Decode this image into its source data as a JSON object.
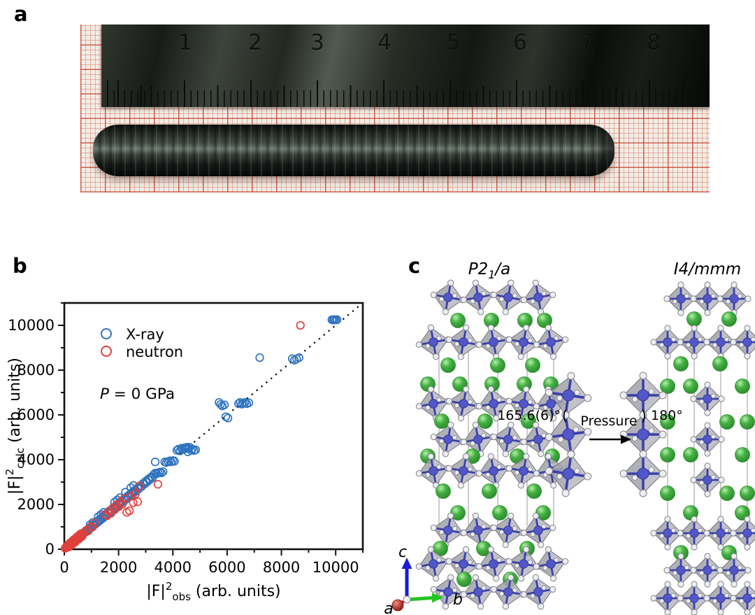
{
  "panels": {
    "a": {
      "label": "a",
      "ruler_numbers": [
        "1",
        "2",
        "3",
        "4",
        "5",
        "6",
        "7",
        "8"
      ]
    },
    "b": {
      "label": "b"
    },
    "c": {
      "label": "c",
      "left_space_group": {
        "base": "P2",
        "sub": "1",
        "rest": "/a"
      },
      "right_space_group": "I4/mmm",
      "angle_ambient": "165.6(6)°",
      "angle_pressure": "180°",
      "arrow_label": "Pressure",
      "axis_labels": {
        "a": "a",
        "b": "b",
        "c": "c"
      },
      "colors": {
        "lanthanum": "#44b042",
        "nickel": "#5157c8",
        "oxygen": "#ededf2",
        "octahedron": "#b4b4bc",
        "axis_a": "#c42222",
        "axis_b": "#22c522",
        "axis_c": "#1b1bd6"
      }
    }
  },
  "chart_data": {
    "type": "scatter",
    "title": "",
    "xlabel_parts": {
      "base": "|F|",
      "sup": "2",
      "sub": "obs",
      "rest": " (arb. units)"
    },
    "ylabel_parts": {
      "base": "|F|",
      "sup": "2",
      "sub": "calc",
      "rest": " (arb. units)"
    },
    "xlim": [
      0,
      11000
    ],
    "ylim": [
      0,
      11000
    ],
    "xticks": [
      0,
      2000,
      4000,
      6000,
      8000,
      10000
    ],
    "yticks": [
      0,
      2000,
      4000,
      6000,
      8000,
      10000
    ],
    "minor_tick_step": 1000,
    "grid": false,
    "legend_position": "upper-left-inside",
    "annotation": {
      "italic": "P",
      "rest": " = 0 GPa"
    },
    "reference_line": {
      "type": "identity y=x",
      "style": "dotted",
      "color": "#111111"
    },
    "series": [
      {
        "name": "X-ray",
        "color": "#2f73c0",
        "marker": "open-circle",
        "points": [
          [
            150,
            160
          ],
          [
            200,
            190
          ],
          [
            250,
            260
          ],
          [
            300,
            290
          ],
          [
            330,
            350
          ],
          [
            360,
            340
          ],
          [
            400,
            410
          ],
          [
            430,
            420
          ],
          [
            460,
            480
          ],
          [
            500,
            490
          ],
          [
            530,
            550
          ],
          [
            560,
            540
          ],
          [
            600,
            615
          ],
          [
            630,
            600
          ],
          [
            660,
            680
          ],
          [
            700,
            690
          ],
          [
            730,
            750
          ],
          [
            760,
            740
          ],
          [
            800,
            820
          ],
          [
            830,
            800
          ],
          [
            860,
            880
          ],
          [
            900,
            890
          ],
          [
            930,
            950
          ],
          [
            960,
            930
          ],
          [
            1000,
            1020
          ],
          [
            1030,
            1000
          ],
          [
            1060,
            1090
          ],
          [
            1100,
            1080
          ],
          [
            1130,
            1160
          ],
          [
            1160,
            1130
          ],
          [
            1200,
            1230
          ],
          [
            1230,
            1200
          ],
          [
            1260,
            1290
          ],
          [
            1300,
            1270
          ],
          [
            1330,
            1360
          ],
          [
            1360,
            1330
          ],
          [
            1400,
            1430
          ],
          [
            1430,
            1390
          ],
          [
            1460,
            1500
          ],
          [
            1500,
            1470
          ],
          [
            1530,
            1560
          ],
          [
            1560,
            1520
          ],
          [
            1600,
            1640
          ],
          [
            1630,
            1590
          ],
          [
            1660,
            1700
          ],
          [
            1700,
            1660
          ],
          [
            1730,
            1770
          ],
          [
            1760,
            1720
          ],
          [
            1800,
            1840
          ],
          [
            1830,
            1790
          ],
          [
            1860,
            1900
          ],
          [
            1900,
            1860
          ],
          [
            1930,
            1970
          ],
          [
            1960,
            1920
          ],
          [
            2000,
            2040
          ],
          [
            2030,
            1990
          ],
          [
            2060,
            2100
          ],
          [
            2100,
            2060
          ],
          [
            2130,
            2170
          ],
          [
            2160,
            2120
          ],
          [
            2200,
            2240
          ],
          [
            2230,
            2190
          ],
          [
            2260,
            2300
          ],
          [
            2300,
            2260
          ],
          [
            2330,
            2370
          ],
          [
            2360,
            2320
          ],
          [
            2400,
            2440
          ],
          [
            2430,
            2390
          ],
          [
            2460,
            2500
          ],
          [
            2500,
            2460
          ],
          [
            2530,
            2570
          ],
          [
            2560,
            2520
          ],
          [
            2600,
            2640
          ],
          [
            2650,
            2600
          ],
          [
            2700,
            2740
          ],
          [
            2750,
            2700
          ],
          [
            2800,
            2840
          ],
          [
            2850,
            2800
          ],
          [
            2900,
            2940
          ],
          [
            2950,
            2900
          ],
          [
            3000,
            3040
          ],
          [
            3050,
            3000
          ],
          [
            3100,
            3140
          ],
          [
            3150,
            3100
          ],
          [
            3200,
            3230
          ],
          [
            3250,
            3200
          ],
          [
            3300,
            3340
          ],
          [
            2450,
            2750
          ],
          [
            2550,
            2850
          ],
          [
            2250,
            2550
          ],
          [
            1850,
            2100
          ],
          [
            1950,
            2200
          ],
          [
            2050,
            2300
          ],
          [
            1250,
            1450
          ],
          [
            1350,
            1550
          ],
          [
            1450,
            1650
          ],
          [
            950,
            1100
          ],
          [
            1050,
            1200
          ],
          [
            3350,
            3400
          ],
          [
            3400,
            3370
          ],
          [
            3460,
            3420
          ],
          [
            3520,
            3450
          ],
          [
            3580,
            3410
          ],
          [
            3640,
            3470
          ],
          [
            3350,
            3900
          ],
          [
            3700,
            3900
          ],
          [
            3760,
            3870
          ],
          [
            3820,
            3920
          ],
          [
            3880,
            3950
          ],
          [
            3940,
            3900
          ],
          [
            4000,
            3960
          ],
          [
            4060,
            3930
          ],
          [
            4150,
            4420
          ],
          [
            4200,
            4470
          ],
          [
            4260,
            4390
          ],
          [
            4310,
            4510
          ],
          [
            4360,
            4460
          ],
          [
            4420,
            4530
          ],
          [
            4470,
            4490
          ],
          [
            4520,
            4560
          ],
          [
            4570,
            4500
          ],
          [
            4620,
            4560
          ],
          [
            4670,
            4420
          ],
          [
            4720,
            4480
          ],
          [
            4780,
            4410
          ],
          [
            4840,
            4440
          ],
          [
            4550,
            4350
          ],
          [
            5700,
            6560
          ],
          [
            5760,
            6470
          ],
          [
            5820,
            6400
          ],
          [
            5900,
            6450
          ],
          [
            5950,
            5920
          ],
          [
            6030,
            5860
          ],
          [
            6420,
            6500
          ],
          [
            6480,
            6560
          ],
          [
            6540,
            6480
          ],
          [
            6600,
            6530
          ],
          [
            6660,
            6560
          ],
          [
            6720,
            6500
          ],
          [
            6800,
            6540
          ],
          [
            7200,
            8560
          ],
          [
            8400,
            8510
          ],
          [
            8480,
            8450
          ],
          [
            8560,
            8500
          ],
          [
            8650,
            8560
          ],
          [
            9860,
            10250
          ],
          [
            9910,
            10240
          ],
          [
            9950,
            10260
          ],
          [
            10000,
            10240
          ],
          [
            10050,
            10255
          ]
        ]
      },
      {
        "name": "neutron",
        "color": "#e0413c",
        "marker": "open-circle",
        "points": [
          [
            30,
            40
          ],
          [
            60,
            55
          ],
          [
            90,
            100
          ],
          [
            120,
            110
          ],
          [
            150,
            160
          ],
          [
            180,
            170
          ],
          [
            210,
            225
          ],
          [
            240,
            230
          ],
          [
            270,
            285
          ],
          [
            300,
            290
          ],
          [
            330,
            345
          ],
          [
            360,
            350
          ],
          [
            390,
            405
          ],
          [
            420,
            410
          ],
          [
            450,
            465
          ],
          [
            480,
            470
          ],
          [
            510,
            525
          ],
          [
            540,
            530
          ],
          [
            570,
            585
          ],
          [
            600,
            590
          ],
          [
            640,
            650
          ],
          [
            680,
            665
          ],
          [
            100,
            160
          ],
          [
            160,
            100
          ],
          [
            220,
            290
          ],
          [
            280,
            210
          ],
          [
            340,
            420
          ],
          [
            400,
            320
          ],
          [
            460,
            545
          ],
          [
            520,
            440
          ],
          [
            580,
            660
          ],
          [
            250,
            320
          ],
          [
            310,
            250
          ],
          [
            370,
            450
          ],
          [
            430,
            360
          ],
          [
            200,
            140
          ],
          [
            140,
            200
          ],
          [
            80,
            130
          ],
          [
            350,
            280
          ],
          [
            500,
            580
          ],
          [
            560,
            480
          ],
          [
            620,
            700
          ],
          [
            660,
            580
          ],
          [
            700,
            720
          ],
          [
            800,
            840
          ],
          [
            880,
            820
          ],
          [
            960,
            1000
          ],
          [
            1040,
            990
          ],
          [
            1120,
            1170
          ],
          [
            1500,
            1560
          ],
          [
            1580,
            1500
          ],
          [
            1650,
            1710
          ],
          [
            1720,
            1610
          ],
          [
            1790,
            1850
          ],
          [
            1860,
            1770
          ],
          [
            1930,
            1990
          ],
          [
            2000,
            1890
          ],
          [
            2070,
            2130
          ],
          [
            2140,
            2010
          ],
          [
            2210,
            2270
          ],
          [
            2300,
            1650
          ],
          [
            2400,
            1720
          ],
          [
            2460,
            2360
          ],
          [
            2540,
            2080
          ],
          [
            2620,
            2470
          ],
          [
            2700,
            2120
          ],
          [
            2760,
            2820
          ],
          [
            3450,
            2900
          ],
          [
            8700,
            10000
          ]
        ]
      }
    ]
  }
}
